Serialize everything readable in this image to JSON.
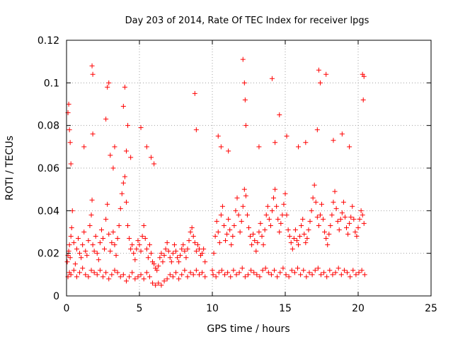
{
  "chart_data": {
    "type": "scatter",
    "title": "Day 203 of 2014, Rate Of TEC Index for receiver lpgs",
    "xlabel": "GPS time / hours",
    "ylabel": "ROTI / TECUs",
    "xlim": [
      0,
      25
    ],
    "ylim": [
      0,
      0.12
    ],
    "x_ticks": [
      0,
      5,
      10,
      15,
      20,
      25
    ],
    "x_tick_labels": [
      "0",
      "5",
      "10",
      "15",
      "20",
      "25"
    ],
    "y_ticks": [
      0,
      0.02,
      0.04,
      0.06,
      0.08,
      0.1,
      0.12
    ],
    "y_tick_labels": [
      "0",
      "0.02",
      "0.04",
      "0.06",
      "0.08",
      "0.1",
      "0.12"
    ],
    "grid": true,
    "marker": "+",
    "color": "#ff0000",
    "series": [
      {
        "x": [
          0.05,
          0.1,
          0.15,
          0.2,
          0.25,
          0.3,
          0.35,
          0.4,
          0.5,
          0.6,
          0.7,
          0.8,
          0.9,
          1.0,
          1.1,
          1.2,
          1.3,
          1.4,
          1.5,
          1.6,
          1.7,
          1.75,
          1.8,
          1.9,
          2.0,
          2.1,
          2.2,
          2.3,
          2.4,
          2.5,
          2.6,
          2.7,
          2.8,
          2.9,
          3.0,
          3.1,
          3.2,
          3.3,
          3.4,
          3.5,
          3.6,
          3.7,
          3.8,
          3.9,
          4.0,
          4.1,
          4.2,
          4.3,
          4.4,
          4.5,
          4.6,
          4.7,
          4.8,
          4.9,
          5.0,
          5.1,
          5.2,
          5.3,
          5.4,
          5.5,
          5.6,
          5.7,
          5.8,
          5.9,
          6.0,
          6.1,
          6.2,
          6.3,
          6.4,
          6.5,
          6.6,
          6.7,
          6.8,
          6.9,
          7.0,
          7.1,
          7.2,
          7.3,
          7.4,
          7.5,
          7.6,
          7.7,
          7.8,
          7.9,
          8.0,
          8.1,
          8.2,
          8.3,
          8.4,
          8.5,
          8.6,
          8.7,
          8.8,
          8.9,
          9.0,
          9.1,
          9.2,
          9.3,
          9.4,
          9.5,
          0.1,
          0.2,
          0.3,
          0.5,
          0.7,
          0.9,
          1.1,
          1.3,
          1.5,
          1.7,
          1.9,
          2.1,
          2.3,
          2.5,
          2.7,
          2.9,
          3.1,
          3.3,
          3.5,
          3.7,
          3.9,
          4.1,
          4.3,
          4.5,
          4.7,
          4.9,
          5.1,
          5.3,
          5.5,
          5.7,
          5.9,
          6.1,
          6.3,
          6.5,
          6.7,
          6.9,
          7.1,
          7.3,
          7.5,
          7.7,
          7.9,
          8.1,
          8.3,
          8.5,
          8.7,
          8.9,
          9.1,
          9.3,
          9.5,
          10.0,
          10.1,
          10.2,
          10.3,
          10.4,
          10.5,
          10.6,
          10.7,
          10.8,
          10.9,
          11.0,
          11.1,
          11.2,
          11.3,
          11.4,
          11.5,
          11.6,
          11.7,
          11.8,
          11.9,
          12.0,
          12.1,
          12.2,
          12.3,
          12.4,
          12.5,
          12.6,
          12.7,
          12.8,
          12.9,
          13.0,
          13.1,
          13.2,
          13.3,
          13.4,
          13.5,
          13.6,
          13.7,
          13.8,
          13.9,
          14.0,
          14.1,
          14.2,
          14.3,
          14.4,
          14.5,
          14.6,
          14.7,
          14.8,
          14.9,
          15.0,
          15.1,
          15.2,
          15.3,
          15.4,
          15.5,
          15.6,
          15.7,
          15.8,
          15.9,
          16.0,
          16.1,
          16.2,
          16.3,
          16.4,
          16.5,
          16.6,
          16.7,
          16.8,
          16.9,
          17.0,
          17.1,
          17.2,
          17.3,
          17.4,
          17.5,
          17.6,
          17.7,
          17.8,
          17.9,
          18.0,
          18.1,
          18.2,
          18.3,
          18.4,
          18.5,
          18.6,
          18.7,
          18.8,
          18.9,
          19.0,
          19.1,
          19.2,
          19.3,
          19.4,
          19.5,
          19.6,
          19.7,
          19.8,
          19.9,
          20.0,
          20.1,
          20.2,
          20.3,
          20.4,
          10.05,
          10.25,
          10.45,
          10.65,
          10.85,
          11.05,
          11.25,
          11.45,
          11.65,
          11.85,
          12.05,
          12.25,
          12.45,
          12.65,
          12.85,
          13.05,
          13.25,
          13.45,
          13.65,
          13.85,
          14.05,
          14.25,
          14.45,
          14.65,
          14.85,
          15.05,
          15.25,
          15.45,
          15.65,
          15.85,
          16.05,
          16.25,
          16.45,
          16.65,
          16.85,
          17.05,
          17.25,
          17.45,
          17.65,
          17.85,
          18.05,
          18.25,
          18.45,
          18.65,
          18.85,
          19.05,
          19.25,
          19.45,
          19.65,
          19.85,
          20.05,
          20.25,
          20.45,
          0.1,
          0.15,
          0.2,
          0.25,
          1.75,
          1.8,
          2.8,
          2.9,
          3.9,
          4.0,
          4.2,
          8.8,
          12.1,
          12.2,
          12.25,
          14.1,
          17.3,
          17.4,
          17.8,
          20.3,
          20.35,
          20.4,
          0.3,
          1.2,
          1.8,
          2.7,
          3.0,
          3.2,
          3.3,
          4.1,
          4.4,
          5.1,
          5.5,
          5.8,
          6.0,
          8.9,
          10.4,
          10.6,
          11.1,
          12.3,
          13.2,
          14.3,
          14.6,
          15.1,
          15.9,
          16.4,
          17.2,
          18.3,
          18.9,
          19.4
        ],
        "y": [
          0.016,
          0.019,
          0.021,
          0.024,
          0.018,
          0.028,
          0.032,
          0.04,
          0.025,
          0.015,
          0.022,
          0.027,
          0.02,
          0.018,
          0.024,
          0.03,
          0.021,
          0.019,
          0.026,
          0.033,
          0.038,
          0.045,
          0.024,
          0.021,
          0.028,
          0.02,
          0.017,
          0.025,
          0.031,
          0.027,
          0.022,
          0.036,
          0.043,
          0.029,
          0.021,
          0.025,
          0.03,
          0.024,
          0.019,
          0.027,
          0.033,
          0.041,
          0.048,
          0.053,
          0.056,
          0.044,
          0.033,
          0.027,
          0.022,
          0.024,
          0.02,
          0.017,
          0.022,
          0.026,
          0.024,
          0.021,
          0.028,
          0.033,
          0.027,
          0.022,
          0.018,
          0.024,
          0.02,
          0.016,
          0.015,
          0.013,
          0.012,
          0.014,
          0.018,
          0.02,
          0.016,
          0.019,
          0.022,
          0.025,
          0.021,
          0.018,
          0.016,
          0.02,
          0.024,
          0.021,
          0.018,
          0.016,
          0.019,
          0.022,
          0.024,
          0.021,
          0.018,
          0.022,
          0.026,
          0.03,
          0.032,
          0.028,
          0.025,
          0.021,
          0.024,
          0.022,
          0.019,
          0.02,
          0.022,
          0.016,
          0.009,
          0.011,
          0.01,
          0.012,
          0.009,
          0.011,
          0.013,
          0.01,
          0.009,
          0.012,
          0.011,
          0.01,
          0.012,
          0.009,
          0.011,
          0.008,
          0.01,
          0.012,
          0.011,
          0.009,
          0.01,
          0.007,
          0.009,
          0.011,
          0.008,
          0.009,
          0.01,
          0.008,
          0.011,
          0.009,
          0.006,
          0.005,
          0.006,
          0.005,
          0.007,
          0.008,
          0.01,
          0.009,
          0.011,
          0.008,
          0.01,
          0.012,
          0.009,
          0.011,
          0.01,
          0.012,
          0.01,
          0.011,
          0.009,
          0.012,
          0.02,
          0.028,
          0.035,
          0.03,
          0.025,
          0.038,
          0.042,
          0.033,
          0.026,
          0.029,
          0.036,
          0.031,
          0.024,
          0.028,
          0.033,
          0.04,
          0.046,
          0.038,
          0.03,
          0.035,
          0.042,
          0.05,
          0.047,
          0.038,
          0.032,
          0.028,
          0.024,
          0.029,
          0.026,
          0.021,
          0.025,
          0.03,
          0.034,
          0.028,
          0.024,
          0.031,
          0.038,
          0.042,
          0.036,
          0.033,
          0.04,
          0.046,
          0.05,
          0.042,
          0.036,
          0.03,
          0.034,
          0.038,
          0.043,
          0.048,
          0.038,
          0.031,
          0.028,
          0.025,
          0.022,
          0.027,
          0.031,
          0.026,
          0.024,
          0.028,
          0.033,
          0.036,
          0.029,
          0.025,
          0.027,
          0.031,
          0.035,
          0.04,
          0.046,
          0.052,
          0.044,
          0.037,
          0.033,
          0.038,
          0.043,
          0.036,
          0.03,
          0.027,
          0.024,
          0.029,
          0.033,
          0.038,
          0.044,
          0.049,
          0.041,
          0.035,
          0.031,
          0.036,
          0.039,
          0.044,
          0.037,
          0.032,
          0.029,
          0.034,
          0.037,
          0.042,
          0.036,
          0.03,
          0.028,
          0.032,
          0.036,
          0.04,
          0.038,
          0.034,
          0.01,
          0.009,
          0.011,
          0.012,
          0.01,
          0.011,
          0.009,
          0.012,
          0.01,
          0.011,
          0.013,
          0.009,
          0.01,
          0.012,
          0.011,
          0.01,
          0.009,
          0.012,
          0.013,
          0.011,
          0.01,
          0.012,
          0.009,
          0.011,
          0.013,
          0.01,
          0.009,
          0.012,
          0.011,
          0.013,
          0.01,
          0.012,
          0.009,
          0.011,
          0.01,
          0.012,
          0.013,
          0.01,
          0.011,
          0.009,
          0.012,
          0.01,
          0.011,
          0.013,
          0.01,
          0.012,
          0.011,
          0.009,
          0.012,
          0.01,
          0.011,
          0.012,
          0.01,
          0.086,
          0.09,
          0.078,
          0.072,
          0.108,
          0.104,
          0.098,
          0.1,
          0.089,
          0.098,
          0.08,
          0.095,
          0.111,
          0.1,
          0.092,
          0.102,
          0.106,
          0.1,
          0.104,
          0.104,
          0.092,
          0.103,
          0.062,
          0.07,
          0.076,
          0.083,
          0.066,
          0.06,
          0.07,
          0.068,
          0.065,
          0.079,
          0.07,
          0.065,
          0.062,
          0.078,
          0.075,
          0.07,
          0.068,
          0.08,
          0.07,
          0.072,
          0.085,
          0.075,
          0.07,
          0.072,
          0.078,
          0.073,
          0.076,
          0.07
        ]
      }
    ]
  }
}
